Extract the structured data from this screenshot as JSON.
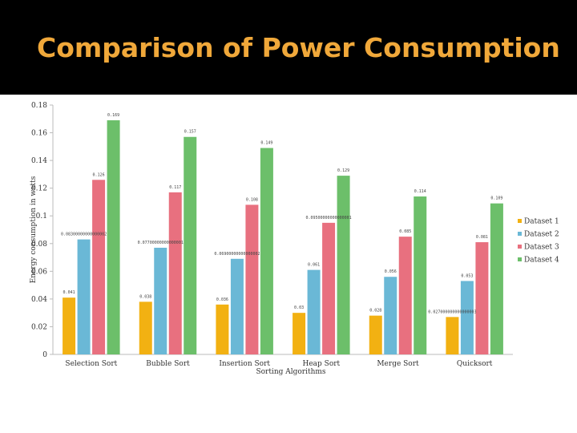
{
  "slide": {
    "title": "Comparison of Power Consumption",
    "title_color": "#f0a83a",
    "band_color": "#000000"
  },
  "chart_data": {
    "type": "bar",
    "title": "",
    "xlabel": "Sorting Algorithms",
    "ylabel": "Energy consumption in watts",
    "ylim": [
      0,
      0.18
    ],
    "yticks": [
      0,
      0.02,
      0.04,
      0.06,
      0.08,
      0.1,
      0.12,
      0.14,
      0.16,
      0.18
    ],
    "ytick_labels": [
      "0",
      "0.02",
      "0.04",
      "0.06",
      "0.08",
      "0.1",
      "0.12",
      "0.14",
      "0.16",
      "0.18"
    ],
    "grid": false,
    "legend_position": "right",
    "categories": [
      "Selection Sort",
      "Bubble Sort",
      "Insertion Sort",
      "Heap Sort",
      "Merge Sort",
      "Quicksort"
    ],
    "series": [
      {
        "name": "Dataset 1",
        "color": "#f2b112",
        "values": [
          0.041,
          0.038,
          0.036,
          0.03,
          0.028,
          0.027
        ],
        "labels": [
          "0.041",
          "0.038",
          "0.036",
          "0.03",
          "0.028",
          "0.027000000000000003"
        ]
      },
      {
        "name": "Dataset 2",
        "color": "#6ab8d6",
        "values": [
          0.083,
          0.077,
          0.069,
          0.061,
          0.056,
          0.053
        ],
        "labels": [
          "0.08300000000000002",
          "0.07700000000000001",
          "0.06900000000000002",
          "0.061",
          "0.056",
          "0.053"
        ]
      },
      {
        "name": "Dataset 3",
        "color": "#e8707f",
        "values": [
          0.126,
          0.117,
          0.108,
          0.095,
          0.085,
          0.081
        ],
        "labels": [
          "0.126",
          "0.117",
          "0.108",
          "0.09500000000000001",
          "0.085",
          "0.081"
        ]
      },
      {
        "name": "Dataset 4",
        "color": "#6cbf6a",
        "values": [
          0.169,
          0.157,
          0.149,
          0.129,
          0.114,
          0.109
        ],
        "labels": [
          "0.169",
          "0.157",
          "0.149",
          "0.129",
          "0.114",
          "0.109"
        ]
      }
    ]
  }
}
